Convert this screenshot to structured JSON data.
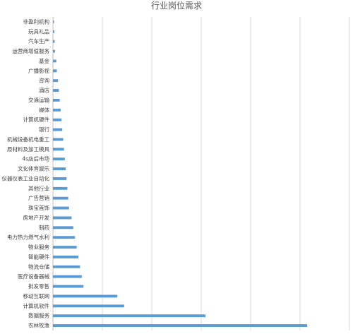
{
  "chart_data": {
    "type": "bar",
    "orientation": "horizontal",
    "title": "行业岗位需求",
    "categories": [
      "非盈利机构",
      "玩具礼品",
      "汽车生产",
      "运营商增值服务",
      "基金",
      "广播影视",
      "咨询",
      "酒店",
      "交通运输",
      "媒体",
      "计算机硬件",
      "银行",
      "机械设备机电重工",
      "原材料及加工模具",
      "4s店后市场",
      "文化体育娱乐",
      "仪器仪表工业自动化",
      "其他行业",
      "广告营销",
      "珠宝首饰",
      "房地产开发",
      "制药",
      "电力热力燃气水利",
      "物业服务",
      "智能硬件",
      "物流仓储",
      "医疗设备器械",
      "批发零售",
      "移动互联网",
      "计算机软件",
      "数据服务",
      "农林牧渔"
    ],
    "values": [
      0.6,
      0.8,
      1,
      1.2,
      2,
      2.3,
      3,
      3.5,
      4,
      4.5,
      5,
      5.5,
      6,
      6.5,
      7,
      7.5,
      8,
      8.5,
      9,
      9.5,
      11,
      12,
      13,
      14,
      15,
      16,
      17,
      18,
      38,
      42,
      90,
      150
    ],
    "xlim": [
      0,
      175
    ],
    "bar_color": "#5b9bd5",
    "grid": "vertical",
    "legend": "none"
  }
}
